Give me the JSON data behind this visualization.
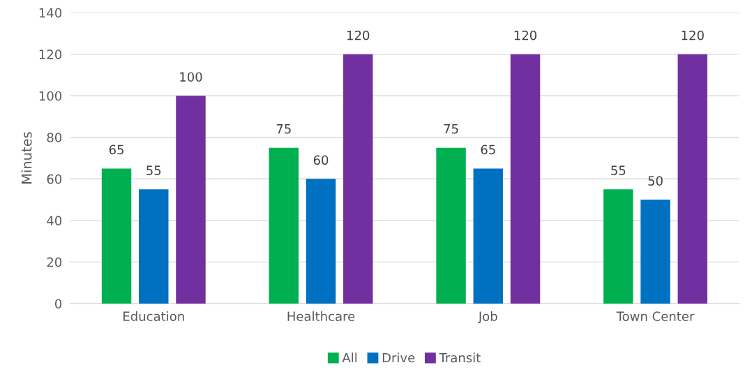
{
  "chart_data": {
    "type": "bar",
    "ylabel": "Minutes",
    "categories": [
      "Education",
      "Healthcare",
      "Job",
      "Town Center"
    ],
    "series": [
      {
        "name": "All",
        "color": "#00b050",
        "values": [
          65,
          75,
          75,
          55
        ]
      },
      {
        "name": "Drive",
        "color": "#0070c0",
        "values": [
          55,
          60,
          65,
          50
        ]
      },
      {
        "name": "Transit",
        "color": "#7030a0",
        "values": [
          100,
          120,
          120,
          120
        ]
      }
    ],
    "ylim": [
      0,
      140
    ],
    "yticks": [
      0,
      20,
      40,
      60,
      80,
      100,
      120,
      140
    ],
    "grid": "y",
    "legend": "bottom",
    "data_labels": true
  }
}
